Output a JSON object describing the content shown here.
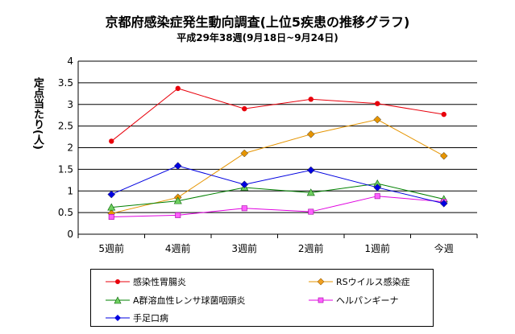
{
  "chart_data": {
    "type": "line",
    "title": "京都府感染症発生動向調査(上位5疾患の推移グラフ)",
    "subtitle": "平成29年38週(9月18日~9月24日)",
    "ylabel": "定点当たり(人)",
    "categories": [
      "5週前",
      "4週前",
      "3週前",
      "2週前",
      "1週前",
      "今週"
    ],
    "ylim": [
      0,
      4
    ],
    "yticks": [
      "0",
      "0.5",
      "1",
      "1.5",
      "2",
      "2.5",
      "3",
      "3.5",
      "4"
    ],
    "grid": true,
    "legend_position": "bottom",
    "series": [
      {
        "name": "感染性胃腸炎",
        "color": "#e8000b",
        "marker": "circle",
        "values": [
          2.15,
          3.37,
          2.9,
          3.12,
          3.02,
          2.77
        ]
      },
      {
        "name": "RSウイルス感染症",
        "color": "#e59400",
        "marker": "diamond",
        "values": [
          0.48,
          0.85,
          1.87,
          2.31,
          2.65,
          1.81
        ]
      },
      {
        "name": "A群溶血性レンサ球菌咽頭炎",
        "color": "#008000",
        "marker": "triangle",
        "values": [
          0.62,
          0.77,
          1.08,
          0.96,
          1.17,
          0.81
        ]
      },
      {
        "name": "ヘルパンギーナ",
        "color": "#e000e0",
        "marker": "square",
        "values": [
          0.4,
          0.44,
          0.6,
          0.52,
          0.88,
          0.75
        ]
      },
      {
        "name": "手足口病",
        "color": "#0000e0",
        "marker": "diamond",
        "values": [
          0.92,
          1.58,
          1.15,
          1.48,
          1.08,
          0.71
        ]
      }
    ]
  }
}
